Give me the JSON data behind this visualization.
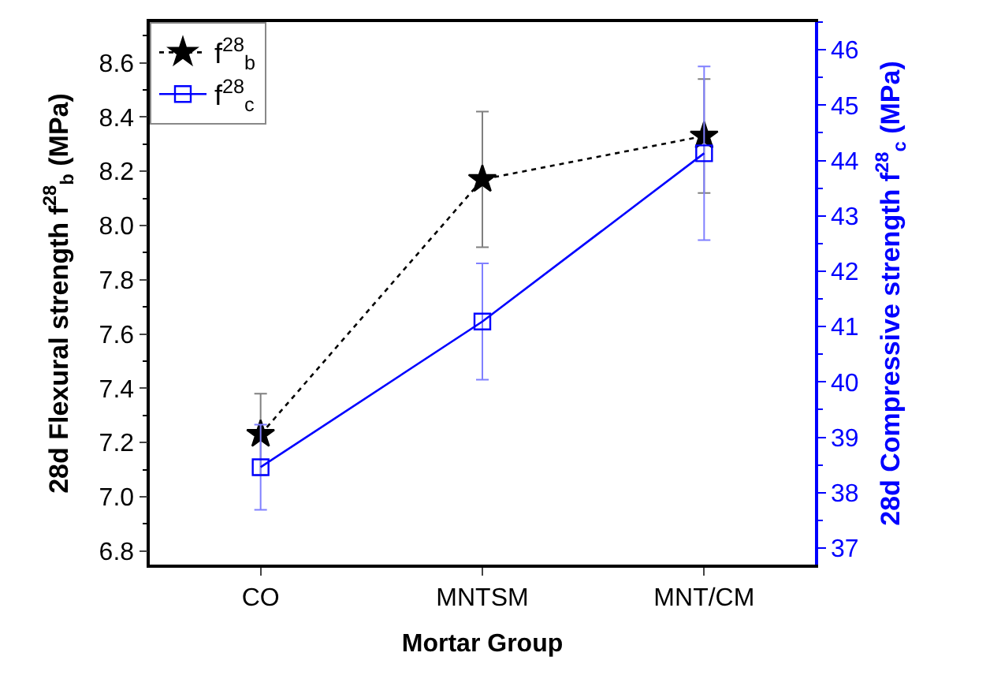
{
  "chart_data": {
    "type": "line",
    "xlabel": "Mortar Group",
    "ylabel": "28d Flexural strength f$^{28}$$_{b}$ (MPa)",
    "y2label": "28d Compressive strength f$^{28}$$_{c}$ (MPa)",
    "categories": [
      "CO",
      "MNTSM",
      "MNT/CM"
    ],
    "series": [
      {
        "name": "f$^{28}$$_{b}$",
        "color": "#000000",
        "values": [
          7.23,
          8.17,
          8.33
        ],
        "errors": [
          0.15,
          0.25,
          0.21
        ],
        "marker": "star",
        "line_style": "dotted"
      },
      {
        "name": "f$^{28}$$_{c}$",
        "color": "#0000ff",
        "values": [
          38.46,
          41.09,
          44.13
        ],
        "errors": [
          0.77,
          1.05,
          1.57
        ],
        "marker": "square",
        "line_style": "solid",
        "axis": "y2"
      }
    ],
    "ylim": [
      6.75,
      8.75
    ],
    "yticks": [
      6.8,
      {
        "value": 7,
        "label": "7.0"
      },
      7.2,
      7.4,
      7.6,
      7.8,
      {
        "value": 8,
        "label": "8.0"
      },
      8.2,
      8.4,
      8.6
    ],
    "y2lim": [
      36.7,
      46.5
    ],
    "y2ticks": [
      37,
      38,
      39,
      40,
      41,
      42,
      43,
      44,
      45,
      46
    ],
    "legend": "top left"
  }
}
